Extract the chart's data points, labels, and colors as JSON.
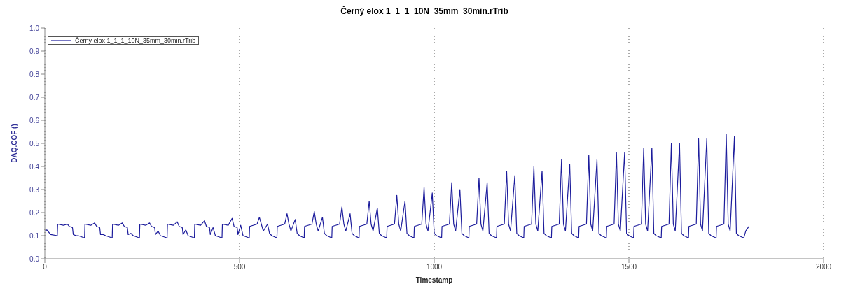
{
  "chart_data": {
    "type": "line",
    "title": "Černý elox 1_1_1_10N_35mm_30min.rTrib",
    "xlabel": "Timestamp",
    "ylabel": "DAQ.COF ()",
    "xlim": [
      0,
      2000
    ],
    "xticks": [
      0,
      500,
      1000,
      1500,
      2000
    ],
    "ylim": [
      0,
      1
    ],
    "yticks": [
      {
        "value": 0,
        "label": "0.0"
      },
      0.1,
      0.2,
      0.3,
      0.4,
      0.5,
      0.6,
      0.7,
      0.8,
      0.9,
      {
        "value": 1,
        "label": "1.0"
      }
    ],
    "grid": "x",
    "legend": "top left",
    "marker": "none",
    "line_style": "solid",
    "series": [
      {
        "name": "Černý elox 1_1_1_10N_35mm_30min.rTrib",
        "color": "#1c1c9c",
        "x": [
          0,
          5,
          15,
          32,
          33,
          48,
          58,
          63,
          71,
          73,
          80,
          86,
          102,
          103,
          118,
          128,
          133,
          141,
          143,
          150,
          156,
          173,
          174,
          189,
          199,
          204,
          212,
          214,
          221,
          227,
          243,
          244,
          259,
          269,
          274,
          282,
          284,
          291,
          297,
          314,
          315,
          330,
          340,
          345,
          353,
          355,
          362,
          368,
          384,
          385,
          400,
          410,
          415,
          423,
          425,
          432,
          438,
          455,
          456,
          471,
          481,
          486,
          494,
          496,
          503,
          509,
          525,
          526,
          545,
          551,
          556,
          561,
          572,
          577,
          583,
          596,
          597,
          616,
          622,
          627,
          632,
          643,
          648,
          654,
          666,
          667,
          686,
          692,
          697,
          702,
          713,
          718,
          724,
          737,
          738,
          757,
          763,
          768,
          773,
          784,
          789,
          795,
          807,
          808,
          827,
          833,
          838,
          843,
          854,
          859,
          865,
          878,
          879,
          898,
          904,
          909,
          914,
          925,
          930,
          936,
          948,
          949,
          968,
          974,
          979,
          984,
          995,
          1000,
          1006,
          1019,
          1020,
          1039,
          1045,
          1050,
          1055,
          1066,
          1071,
          1077,
          1089,
          1090,
          1109,
          1115,
          1120,
          1125,
          1136,
          1141,
          1147,
          1160,
          1161,
          1180,
          1186,
          1191,
          1196,
          1207,
          1212,
          1218,
          1230,
          1231,
          1250,
          1256,
          1261,
          1266,
          1277,
          1282,
          1288,
          1301,
          1302,
          1321,
          1327,
          1332,
          1337,
          1348,
          1353,
          1359,
          1371,
          1372,
          1391,
          1397,
          1402,
          1407,
          1418,
          1423,
          1429,
          1442,
          1443,
          1462,
          1468,
          1473,
          1478,
          1489,
          1494,
          1500,
          1512,
          1513,
          1532,
          1538,
          1543,
          1548,
          1559,
          1564,
          1570,
          1583,
          1584,
          1603,
          1609,
          1614,
          1619,
          1630,
          1635,
          1641,
          1653,
          1654,
          1673,
          1679,
          1684,
          1689,
          1700,
          1705,
          1711,
          1724,
          1725,
          1744,
          1750,
          1755,
          1760,
          1771,
          1776,
          1782,
          1795,
          1800,
          1808
        ],
        "values": [
          0.12,
          0.125,
          0.105,
          0.1,
          0.15,
          0.145,
          0.15,
          0.14,
          0.135,
          0.105,
          0.1,
          0.1,
          0.09,
          0.15,
          0.145,
          0.155,
          0.14,
          0.135,
          0.105,
          0.105,
          0.1,
          0.09,
          0.15,
          0.145,
          0.155,
          0.14,
          0.135,
          0.105,
          0.11,
          0.1,
          0.09,
          0.15,
          0.145,
          0.155,
          0.14,
          0.135,
          0.105,
          0.12,
          0.1,
          0.09,
          0.15,
          0.145,
          0.16,
          0.14,
          0.135,
          0.105,
          0.125,
          0.1,
          0.09,
          0.15,
          0.145,
          0.165,
          0.14,
          0.135,
          0.105,
          0.135,
          0.1,
          0.09,
          0.15,
          0.145,
          0.175,
          0.14,
          0.135,
          0.105,
          0.145,
          0.1,
          0.09,
          0.14,
          0.15,
          0.18,
          0.15,
          0.12,
          0.15,
          0.11,
          0.1,
          0.09,
          0.14,
          0.15,
          0.195,
          0.15,
          0.12,
          0.17,
          0.11,
          0.1,
          0.09,
          0.14,
          0.15,
          0.205,
          0.15,
          0.12,
          0.18,
          0.11,
          0.1,
          0.09,
          0.14,
          0.15,
          0.225,
          0.15,
          0.12,
          0.195,
          0.11,
          0.1,
          0.09,
          0.14,
          0.15,
          0.25,
          0.15,
          0.12,
          0.22,
          0.11,
          0.1,
          0.09,
          0.14,
          0.15,
          0.275,
          0.15,
          0.12,
          0.25,
          0.11,
          0.1,
          0.09,
          0.14,
          0.15,
          0.31,
          0.15,
          0.12,
          0.285,
          0.11,
          0.1,
          0.09,
          0.14,
          0.15,
          0.33,
          0.15,
          0.12,
          0.3,
          0.11,
          0.1,
          0.09,
          0.14,
          0.15,
          0.35,
          0.15,
          0.12,
          0.33,
          0.11,
          0.1,
          0.09,
          0.14,
          0.15,
          0.38,
          0.15,
          0.12,
          0.36,
          0.11,
          0.1,
          0.09,
          0.14,
          0.15,
          0.4,
          0.15,
          0.12,
          0.38,
          0.11,
          0.1,
          0.09,
          0.14,
          0.15,
          0.43,
          0.15,
          0.12,
          0.41,
          0.11,
          0.1,
          0.09,
          0.14,
          0.15,
          0.45,
          0.15,
          0.12,
          0.43,
          0.11,
          0.1,
          0.09,
          0.14,
          0.15,
          0.46,
          0.15,
          0.12,
          0.46,
          0.11,
          0.1,
          0.09,
          0.14,
          0.15,
          0.48,
          0.15,
          0.12,
          0.48,
          0.11,
          0.1,
          0.09,
          0.14,
          0.15,
          0.5,
          0.15,
          0.12,
          0.5,
          0.11,
          0.1,
          0.09,
          0.14,
          0.15,
          0.52,
          0.15,
          0.12,
          0.52,
          0.11,
          0.1,
          0.09,
          0.14,
          0.15,
          0.54,
          0.15,
          0.12,
          0.53,
          0.11,
          0.1,
          0.09,
          0.12,
          0.14
        ]
      }
    ]
  }
}
